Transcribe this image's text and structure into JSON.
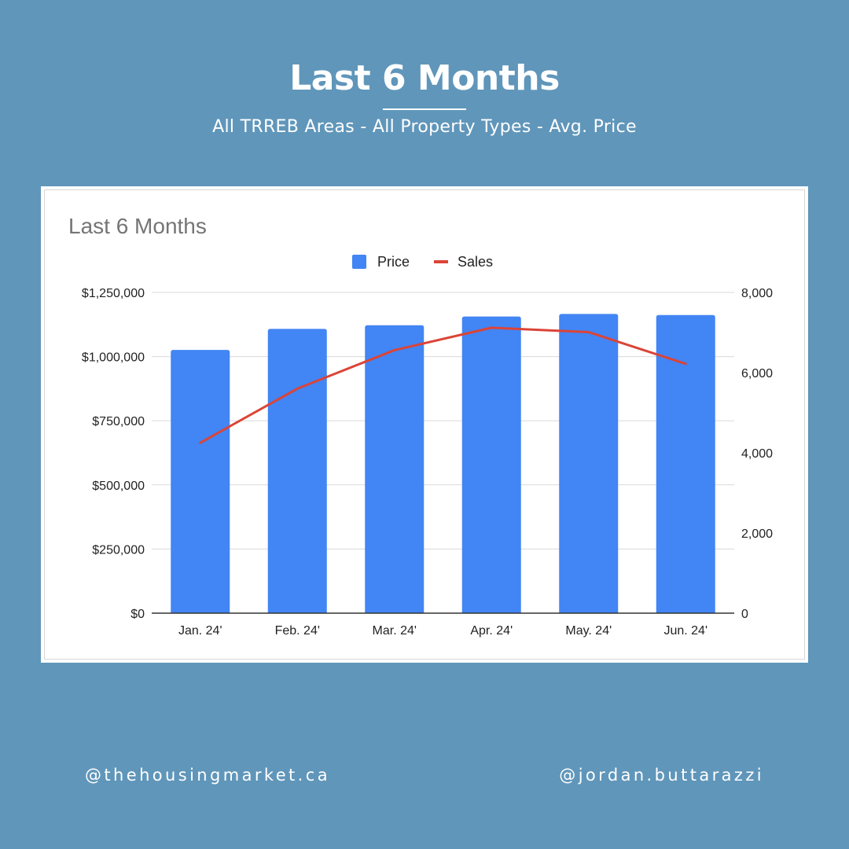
{
  "header": {
    "title": "Last 6 Months",
    "subtitle": "All TRREB Areas - All Property Types - Avg. Price"
  },
  "footer": {
    "left_handle": "@thehousingmarket.ca",
    "right_handle": "@jordan.buttarazzi"
  },
  "colors": {
    "background": "#6096BA",
    "price_bar": "#4285F4",
    "sales_line": "#DB4437"
  },
  "chart_data": {
    "type": "bar",
    "title": "Last 6 Months",
    "categories": [
      "Jan. 24'",
      "Feb. 24'",
      "Mar. 24'",
      "Apr. 24'",
      "May. 24'",
      "Jun. 24'"
    ],
    "series": [
      {
        "name": "Price",
        "type": "bar",
        "axis": "left",
        "values": [
          1026000,
          1108000,
          1122000,
          1156000,
          1166000,
          1162000
        ]
      },
      {
        "name": "Sales",
        "type": "line",
        "axis": "right",
        "values": [
          4250,
          5600,
          6560,
          7120,
          7010,
          6220
        ]
      }
    ],
    "y_left": {
      "lim": [
        0,
        1250000
      ],
      "ticks": [
        "$0",
        "$250,000",
        "$500,000",
        "$750,000",
        "$1,000,000",
        "$1,250,000"
      ]
    },
    "y_right": {
      "lim": [
        0,
        8000
      ],
      "ticks": [
        "0",
        "2,000",
        "4,000",
        "6,000",
        "8,000"
      ]
    },
    "legend": "top-center",
    "grid": true
  }
}
